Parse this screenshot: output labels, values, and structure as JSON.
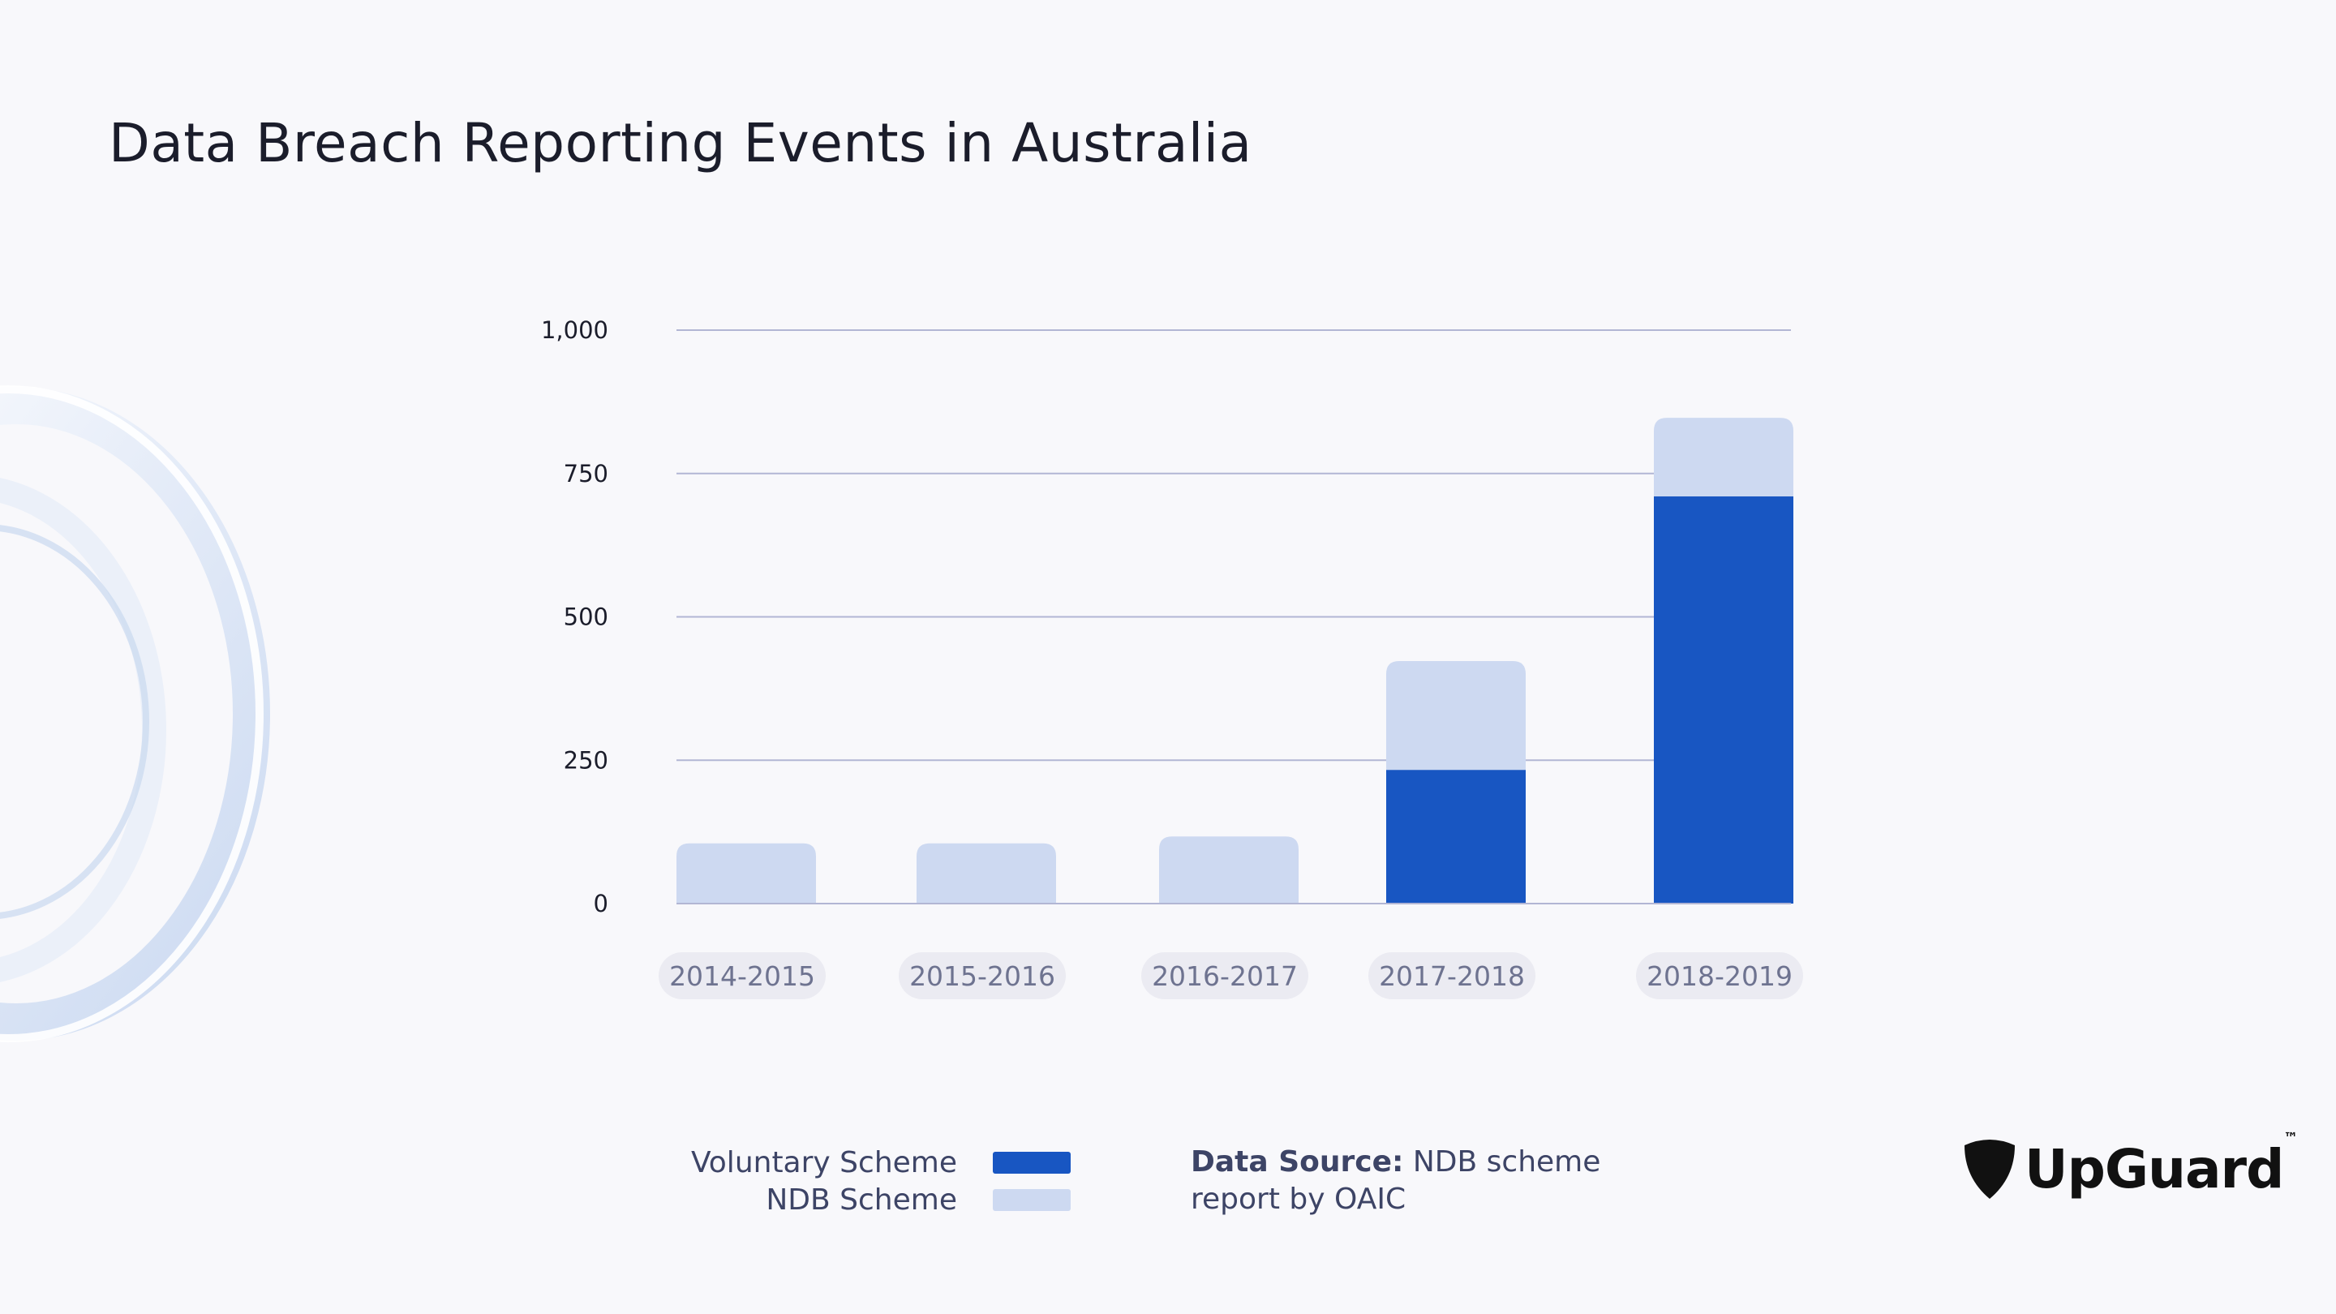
{
  "title": "Data Breach Reporting Events in Australia",
  "chart_data": {
    "type": "bar",
    "stacked": true,
    "title": "Data Breach Reporting Events in Australia",
    "categories": [
      "2014-2015",
      "2015-2016",
      "2016-2017",
      "2017-2018",
      "2018-2019"
    ],
    "series": [
      {
        "name": "Voluntary Scheme",
        "color": "#1856c2",
        "values": [
          0,
          0,
          0,
          233,
          710
        ]
      },
      {
        "name": "NDB Scheme",
        "color": "#cdd9f1",
        "values": [
          105,
          105,
          117,
          190,
          137
        ]
      }
    ],
    "ylim": [
      0,
      1000
    ],
    "yticks": [
      0,
      250,
      500,
      750,
      1000
    ],
    "ytick_labels": [
      "0",
      "250",
      "500",
      "750",
      "1,000"
    ],
    "grid": true
  },
  "legend": {
    "voluntary_label": "Voluntary Scheme",
    "ndb_label": "NDB Scheme",
    "voluntary_color": "#1856c2",
    "ndb_color": "#cdd9f1"
  },
  "source": {
    "label": "Data Source:",
    "text_line1": "NDB scheme",
    "text_line2": "report by OAIC"
  },
  "logo": {
    "word": "UpGuard",
    "tm": "™",
    "icon": "shield-pick-icon"
  }
}
